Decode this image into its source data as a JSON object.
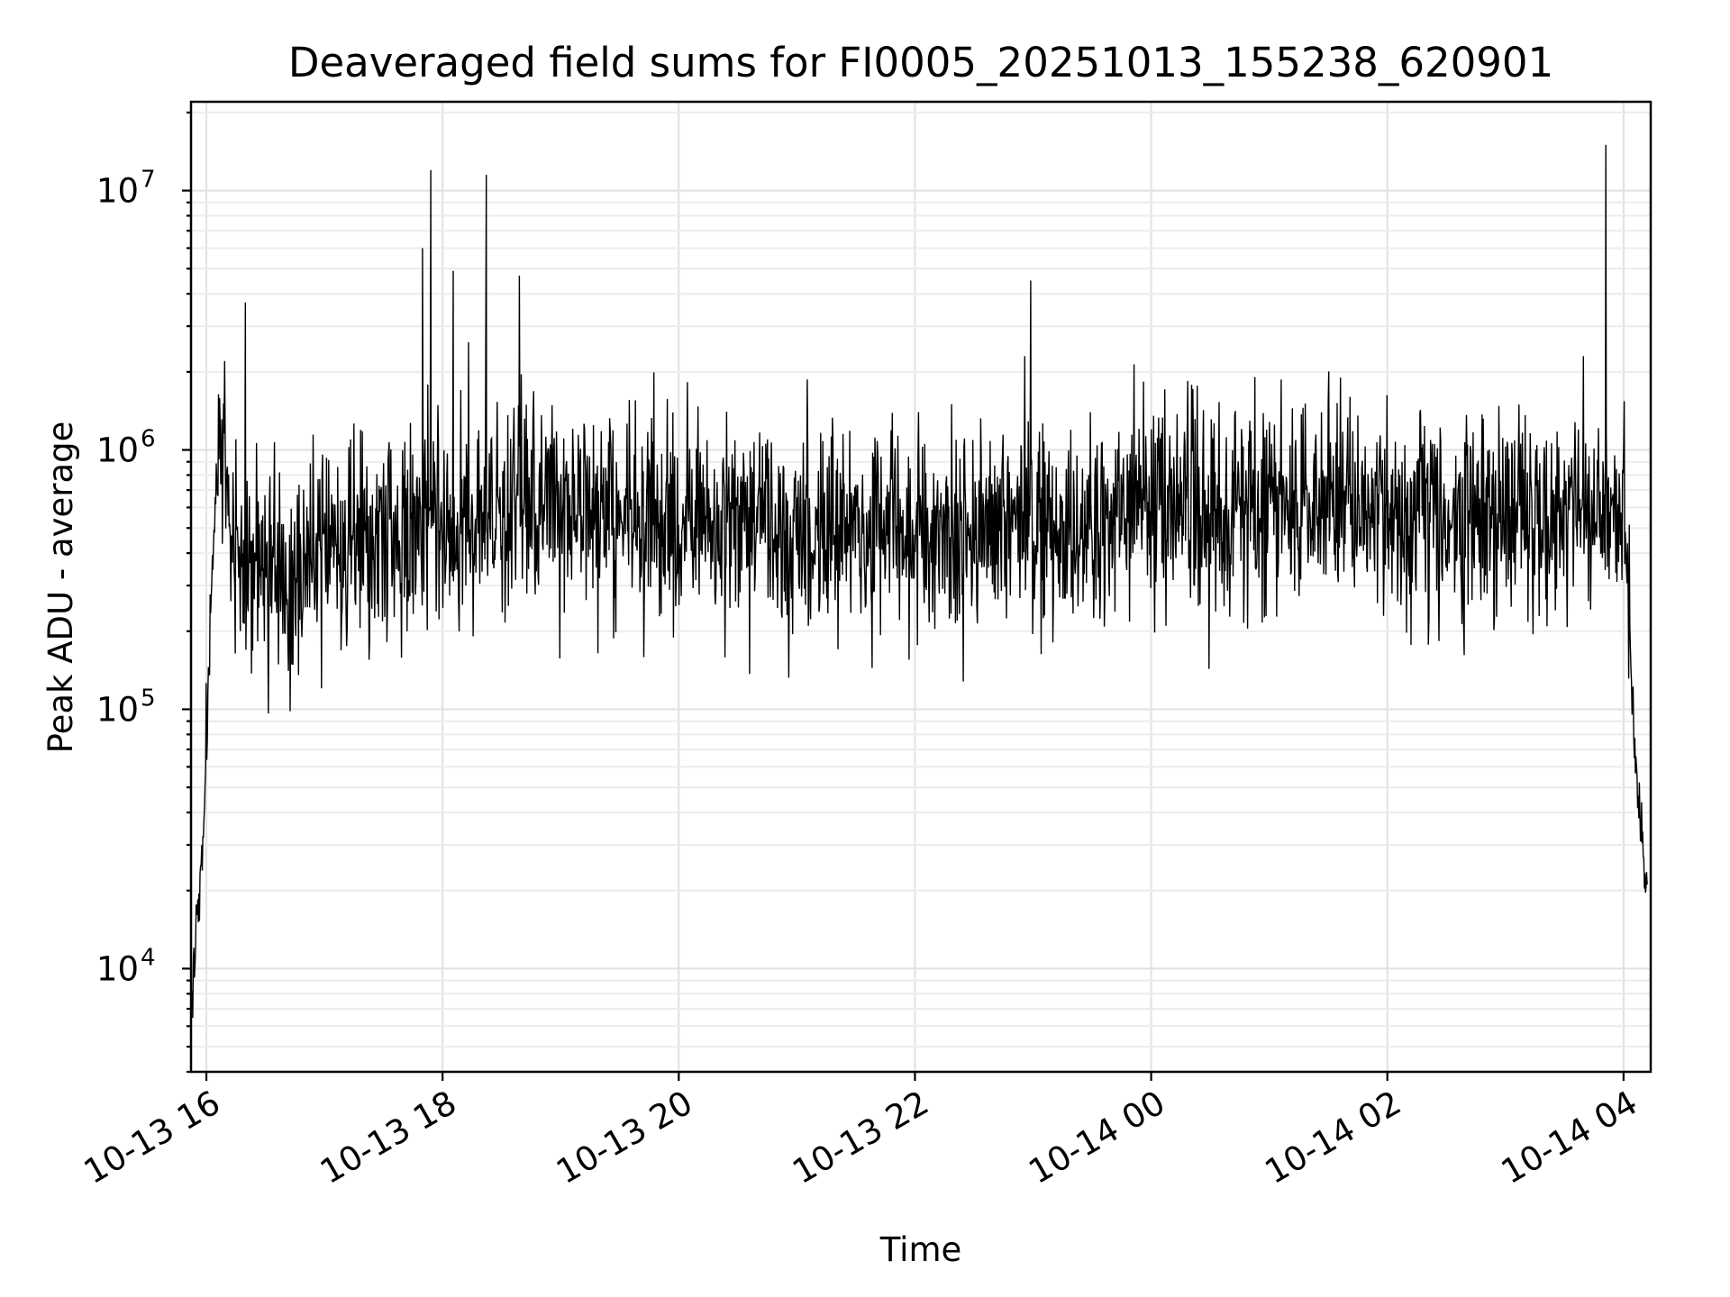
{
  "chart_data": {
    "type": "line",
    "title": "Deaveraged field sums for FI0005_20251013_155238_620901",
    "xlabel": "Time",
    "ylabel": "Peak ADU - average",
    "yscale": "log",
    "ylim": [
      4000,
      22000000
    ],
    "xlim": [
      "2025-10-13 15:52",
      "2025-10-14 04:14"
    ],
    "grid": true,
    "x_tick_labels": [
      "10-13 16",
      "10-13 18",
      "10-13 20",
      "10-13 22",
      "10-14 00",
      "10-14 02",
      "10-14 04"
    ],
    "x_tick_hours": [
      16,
      18,
      20,
      22,
      24,
      26,
      28
    ],
    "y_ticks": [
      {
        "value": 10000,
        "base": "10",
        "exp": "4"
      },
      {
        "value": 100000,
        "base": "10",
        "exp": "5"
      },
      {
        "value": 1000000,
        "base": "10",
        "exp": "6"
      },
      {
        "value": 10000000,
        "base": "10",
        "exp": "7"
      }
    ],
    "series": [
      {
        "name": "Peak ADU - average",
        "color": "#000000",
        "x_hours": [
          15.88,
          15.9,
          15.93,
          15.97,
          16.0,
          16.05,
          16.1,
          16.15,
          16.2,
          16.3,
          16.5,
          16.8,
          17.2,
          17.6,
          17.85,
          17.9,
          18.0,
          18.2,
          18.37,
          18.6,
          19.0,
          19.5,
          20.0,
          20.5,
          21.0,
          21.5,
          22.0,
          22.5,
          22.95,
          23.0,
          23.4,
          23.9,
          24.5,
          25.0,
          25.5,
          26.0,
          26.5,
          27.0,
          27.5,
          27.85,
          28.0,
          28.1,
          28.2
        ],
        "median_adu": [
          7000,
          11000,
          16000,
          30000,
          90000,
          350000,
          800000,
          900000,
          600000,
          330000,
          320000,
          370000,
          420000,
          460000,
          520000,
          560000,
          480000,
          500000,
          520000,
          560000,
          590000,
          560000,
          530000,
          500000,
          480000,
          470000,
          480000,
          500000,
          520000,
          500000,
          480000,
          560000,
          600000,
          620000,
          600000,
          610000,
          600000,
          580000,
          560000,
          560000,
          600000,
          60000,
          20000
        ],
        "spikes": [
          {
            "hour": 16.33,
            "adu": 3700000
          },
          {
            "hour": 17.83,
            "adu": 6000000
          },
          {
            "hour": 17.9,
            "adu": 12000000
          },
          {
            "hour": 18.09,
            "adu": 4900000
          },
          {
            "hour": 18.22,
            "adu": 2600000
          },
          {
            "hour": 18.37,
            "adu": 11500000
          },
          {
            "hour": 18.65,
            "adu": 4700000
          },
          {
            "hour": 22.98,
            "adu": 4500000
          },
          {
            "hour": 22.93,
            "adu": 2300000
          },
          {
            "hour": 27.66,
            "adu": 2300000
          },
          {
            "hour": 27.85,
            "adu": 15000000
          }
        ]
      }
    ]
  }
}
